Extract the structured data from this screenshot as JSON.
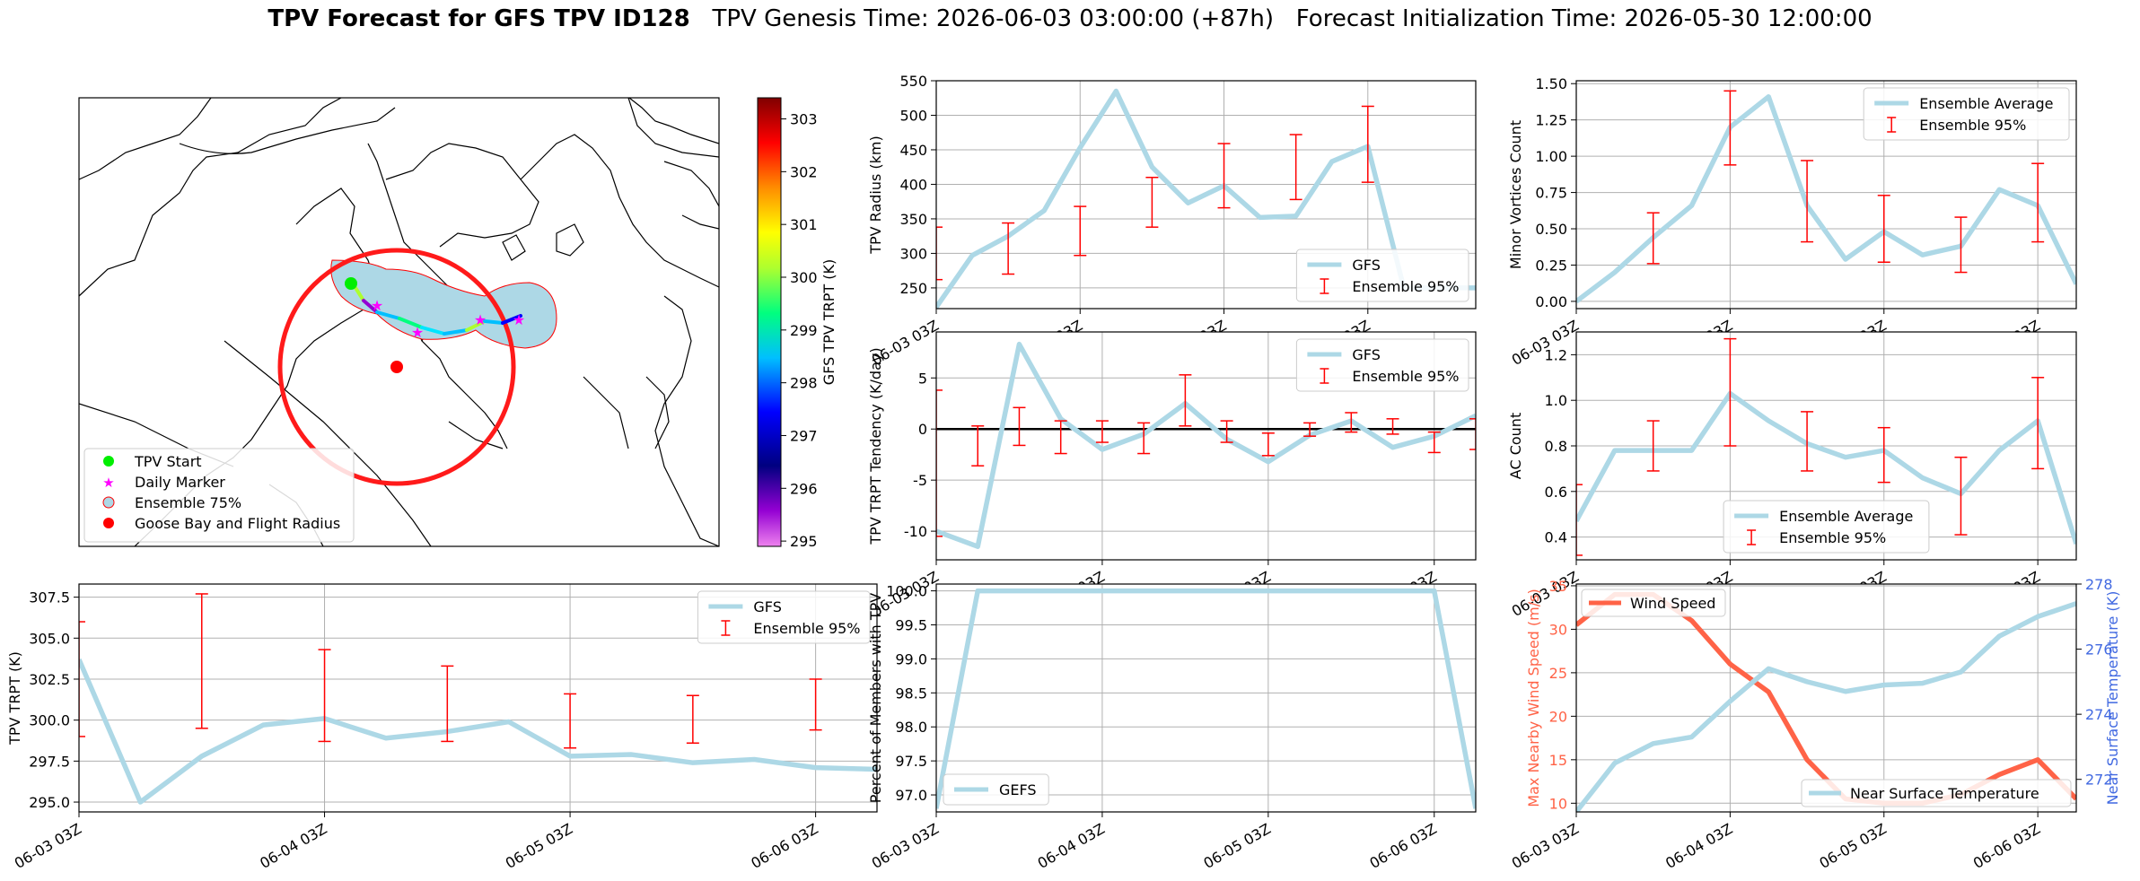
{
  "header": {
    "title_bold": "TPV Forecast for GFS TPV ID128",
    "genesis": "TPV Genesis Time: 2026-06-03 03:00:00 (+87h)",
    "init": "Forecast Initialization Time: 2026-05-30 12:00:00"
  },
  "colors": {
    "gfs_line": "#add8e6",
    "errorbar": "#ff0000",
    "wind": "#ff6347",
    "temp_axis": "#4169e1",
    "goose_bay": "#ff0000",
    "tpv_start": "#00ee00",
    "daily_marker": "#ff00ff"
  },
  "map": {
    "colorbar_label": "GFS TPV TRPT (K)",
    "colorbar_ticks": [
      "303",
      "302",
      "301",
      "300",
      "299",
      "298",
      "297",
      "296",
      "295"
    ],
    "legend": [
      "TPV Start",
      "Daily Marker",
      "Ensemble 75%",
      "Goose Bay and Flight Radius"
    ]
  },
  "x_tick_labels": [
    "06-03 03Z",
    "06-04 03Z",
    "06-05 03Z",
    "06-06 03Z"
  ],
  "chart_data": [
    {
      "id": "radius",
      "type": "line",
      "ylabel": "TPV Radius (km)",
      "ylim": [
        220,
        550
      ],
      "yticks": [
        250,
        300,
        350,
        400,
        450,
        500,
        550
      ],
      "legend": [
        "GFS",
        "Ensemble 95%"
      ],
      "legend_loc": "lower-right",
      "grid": true,
      "x": [
        0,
        3,
        6,
        9,
        12,
        15,
        18,
        21,
        24,
        27,
        30,
        33,
        36,
        39,
        42,
        45
      ],
      "series": [
        {
          "name": "GFS",
          "values": [
            222,
            297,
            325,
            362,
            453,
            535,
            425,
            373,
            398,
            352,
            354,
            433,
            455,
            250,
            250,
            250
          ]
        }
      ],
      "errorbars": [
        {
          "x": 0,
          "low": 262,
          "high": 338
        },
        {
          "x": 6,
          "low": 270,
          "high": 344
        },
        {
          "x": 12,
          "low": 297,
          "high": 368
        },
        {
          "x": 18,
          "low": 338,
          "high": 410
        },
        {
          "x": 24,
          "low": 366,
          "high": 459
        },
        {
          "x": 30,
          "low": 378,
          "high": 472
        },
        {
          "x": 36,
          "low": 403,
          "high": 513
        }
      ]
    },
    {
      "id": "minor",
      "type": "line",
      "ylabel": "Minor Vortices Count",
      "ylim": [
        -0.05,
        1.52
      ],
      "yticks": [
        0.0,
        0.25,
        0.5,
        0.75,
        1.0,
        1.25,
        1.5
      ],
      "ytick_labels": [
        "0.00",
        "0.25",
        "0.50",
        "0.75",
        "1.00",
        "1.25",
        "1.50"
      ],
      "legend": [
        "Ensemble Average",
        "Ensemble 95%"
      ],
      "legend_loc": "upper-right",
      "grid": true,
      "series": [
        {
          "name": "Ensemble Average",
          "values": [
            0.0,
            0.2,
            0.44,
            0.66,
            1.2,
            1.41,
            0.66,
            0.29,
            0.48,
            0.32,
            0.38,
            0.77,
            0.66,
            0.12
          ]
        }
      ],
      "errorbars": [
        {
          "x": 6,
          "low": 0.26,
          "high": 0.61
        },
        {
          "x": 12,
          "low": 0.94,
          "high": 1.45
        },
        {
          "x": 18,
          "low": 0.41,
          "high": 0.97
        },
        {
          "x": 24,
          "low": 0.27,
          "high": 0.73
        },
        {
          "x": 30,
          "low": 0.2,
          "high": 0.58
        },
        {
          "x": 36,
          "low": 0.41,
          "high": 0.95
        }
      ]
    },
    {
      "id": "tendency",
      "type": "line",
      "ylabel": "TPV TRPT Tendency (K/day)",
      "ylim": [
        -12.8,
        9.5
      ],
      "yticks": [
        -10,
        -5,
        0,
        5
      ],
      "legend": [
        "GFS",
        "Ensemble 95%"
      ],
      "legend_loc": "upper-right",
      "grid": true,
      "zero_line": true,
      "series": [
        {
          "name": "GFS",
          "values": [
            -10.0,
            -11.5,
            8.3,
            1.0,
            -2.0,
            -0.5,
            2.5,
            -1.0,
            -3.2,
            -0.6,
            0.8,
            -1.8,
            -0.7,
            1.3
          ]
        }
      ],
      "errorbars": [
        {
          "x": 0,
          "low": -10.5,
          "high": 3.8
        },
        {
          "x": 3,
          "low": -3.6,
          "high": 0.3
        },
        {
          "x": 6,
          "low": -1.6,
          "high": 2.1
        },
        {
          "x": 9,
          "low": -2.4,
          "high": 0.8
        },
        {
          "x": 12,
          "low": -1.3,
          "high": 0.8
        },
        {
          "x": 15,
          "low": -2.4,
          "high": 0.6
        },
        {
          "x": 18,
          "low": 0.3,
          "high": 5.3
        },
        {
          "x": 21,
          "low": -1.3,
          "high": 0.8
        },
        {
          "x": 24,
          "low": -2.6,
          "high": -0.4
        },
        {
          "x": 27,
          "low": -0.7,
          "high": 0.6
        },
        {
          "x": 30,
          "low": -0.3,
          "high": 1.6
        },
        {
          "x": 33,
          "low": -0.5,
          "high": 1.0
        },
        {
          "x": 36,
          "low": -2.3,
          "high": -0.3
        },
        {
          "x": 39,
          "low": -2.0,
          "high": 1.0
        }
      ]
    },
    {
      "id": "ac",
      "type": "line",
      "ylabel": "AC Count",
      "ylim": [
        0.3,
        1.3
      ],
      "yticks": [
        0.4,
        0.6,
        0.8,
        1.0,
        1.2
      ],
      "ytick_labels": [
        "0.4",
        "0.6",
        "0.8",
        "1.0",
        "1.2"
      ],
      "legend": [
        "Ensemble Average",
        "Ensemble 95%"
      ],
      "legend_loc": "lower-center",
      "grid": true,
      "series": [
        {
          "name": "Ensemble Average",
          "values": [
            0.47,
            0.78,
            0.78,
            0.78,
            1.03,
            0.91,
            0.81,
            0.75,
            0.78,
            0.66,
            0.59,
            0.78,
            0.91,
            0.37
          ]
        }
      ],
      "errorbars": [
        {
          "x": 0,
          "low": 0.32,
          "high": 0.63
        },
        {
          "x": 6,
          "low": 0.69,
          "high": 0.91
        },
        {
          "x": 12,
          "low": 0.8,
          "high": 1.27
        },
        {
          "x": 18,
          "low": 0.69,
          "high": 0.95
        },
        {
          "x": 24,
          "low": 0.64,
          "high": 0.88
        },
        {
          "x": 30,
          "low": 0.41,
          "high": 0.75
        },
        {
          "x": 36,
          "low": 0.7,
          "high": 1.1
        }
      ]
    },
    {
      "id": "trpt",
      "type": "line",
      "ylabel": "TPV TRPT (K)",
      "ylim": [
        294.4,
        308.3
      ],
      "yticks": [
        295.0,
        297.5,
        300.0,
        302.5,
        305.0,
        307.5
      ],
      "ytick_labels": [
        "295.0",
        "297.5",
        "300.0",
        "302.5",
        "305.0",
        "307.5"
      ],
      "legend": [
        "GFS",
        "Ensemble 95%"
      ],
      "legend_loc": "upper-right",
      "grid": true,
      "series": [
        {
          "name": "GFS",
          "values": [
            303.7,
            295.0,
            297.8,
            299.7,
            300.1,
            298.9,
            299.3,
            299.9,
            297.8,
            297.9,
            297.4,
            297.6,
            297.1,
            297.0
          ]
        }
      ],
      "errorbars": [
        {
          "x": 0,
          "low": 299.0,
          "high": 306.0
        },
        {
          "x": 6,
          "low": 299.5,
          "high": 307.7
        },
        {
          "x": 12,
          "low": 298.7,
          "high": 304.3
        },
        {
          "x": 18,
          "low": 298.7,
          "high": 303.3
        },
        {
          "x": 24,
          "low": 298.3,
          "high": 301.6
        },
        {
          "x": 30,
          "low": 298.6,
          "high": 301.5
        },
        {
          "x": 36,
          "low": 299.4,
          "high": 302.5
        }
      ]
    },
    {
      "id": "percent",
      "type": "line",
      "ylabel": "Percent of Members with TPV",
      "ylim": [
        96.75,
        100.1
      ],
      "yticks": [
        97.0,
        97.5,
        98.0,
        98.5,
        99.0,
        99.5,
        100.0
      ],
      "ytick_labels": [
        "97.0",
        "97.5",
        "98.0",
        "98.5",
        "99.0",
        "99.5",
        "100.0"
      ],
      "legend": [
        "GEFS"
      ],
      "legend_loc": "lower-left",
      "grid": true,
      "series": [
        {
          "name": "GEFS",
          "values": [
            96.8,
            100.0,
            100.0,
            100.0,
            100.0,
            100.0,
            100.0,
            100.0,
            100.0,
            100.0,
            100.0,
            100.0,
            100.0,
            96.8
          ]
        }
      ]
    },
    {
      "id": "wind_temp",
      "type": "line",
      "ylabel": "Max Nearby Wind Speed (m/s)",
      "ylabel_right": "Near Surface Temperature (K)",
      "ylim": [
        9,
        35.2
      ],
      "yticks": [
        10,
        15,
        20,
        25,
        30,
        35
      ],
      "ylim_right": [
        271.0,
        278.0
      ],
      "yticks_right": [
        272,
        274,
        276,
        278
      ],
      "grid": true,
      "series": [
        {
          "name": "Wind Speed",
          "axis": "left",
          "values": [
            30.5,
            34.0,
            34.0,
            31.0,
            26.0,
            22.8,
            15.0,
            10.5,
            10.0,
            10.0,
            11.0,
            13.3,
            15.0,
            10.5
          ]
        },
        {
          "name": "Near Surface Temperature",
          "axis": "right",
          "values": [
            271.0,
            272.5,
            273.1,
            273.3,
            274.4,
            275.4,
            275.0,
            274.7,
            274.9,
            274.95,
            275.3,
            276.4,
            277.0,
            277.4
          ]
        }
      ]
    }
  ]
}
